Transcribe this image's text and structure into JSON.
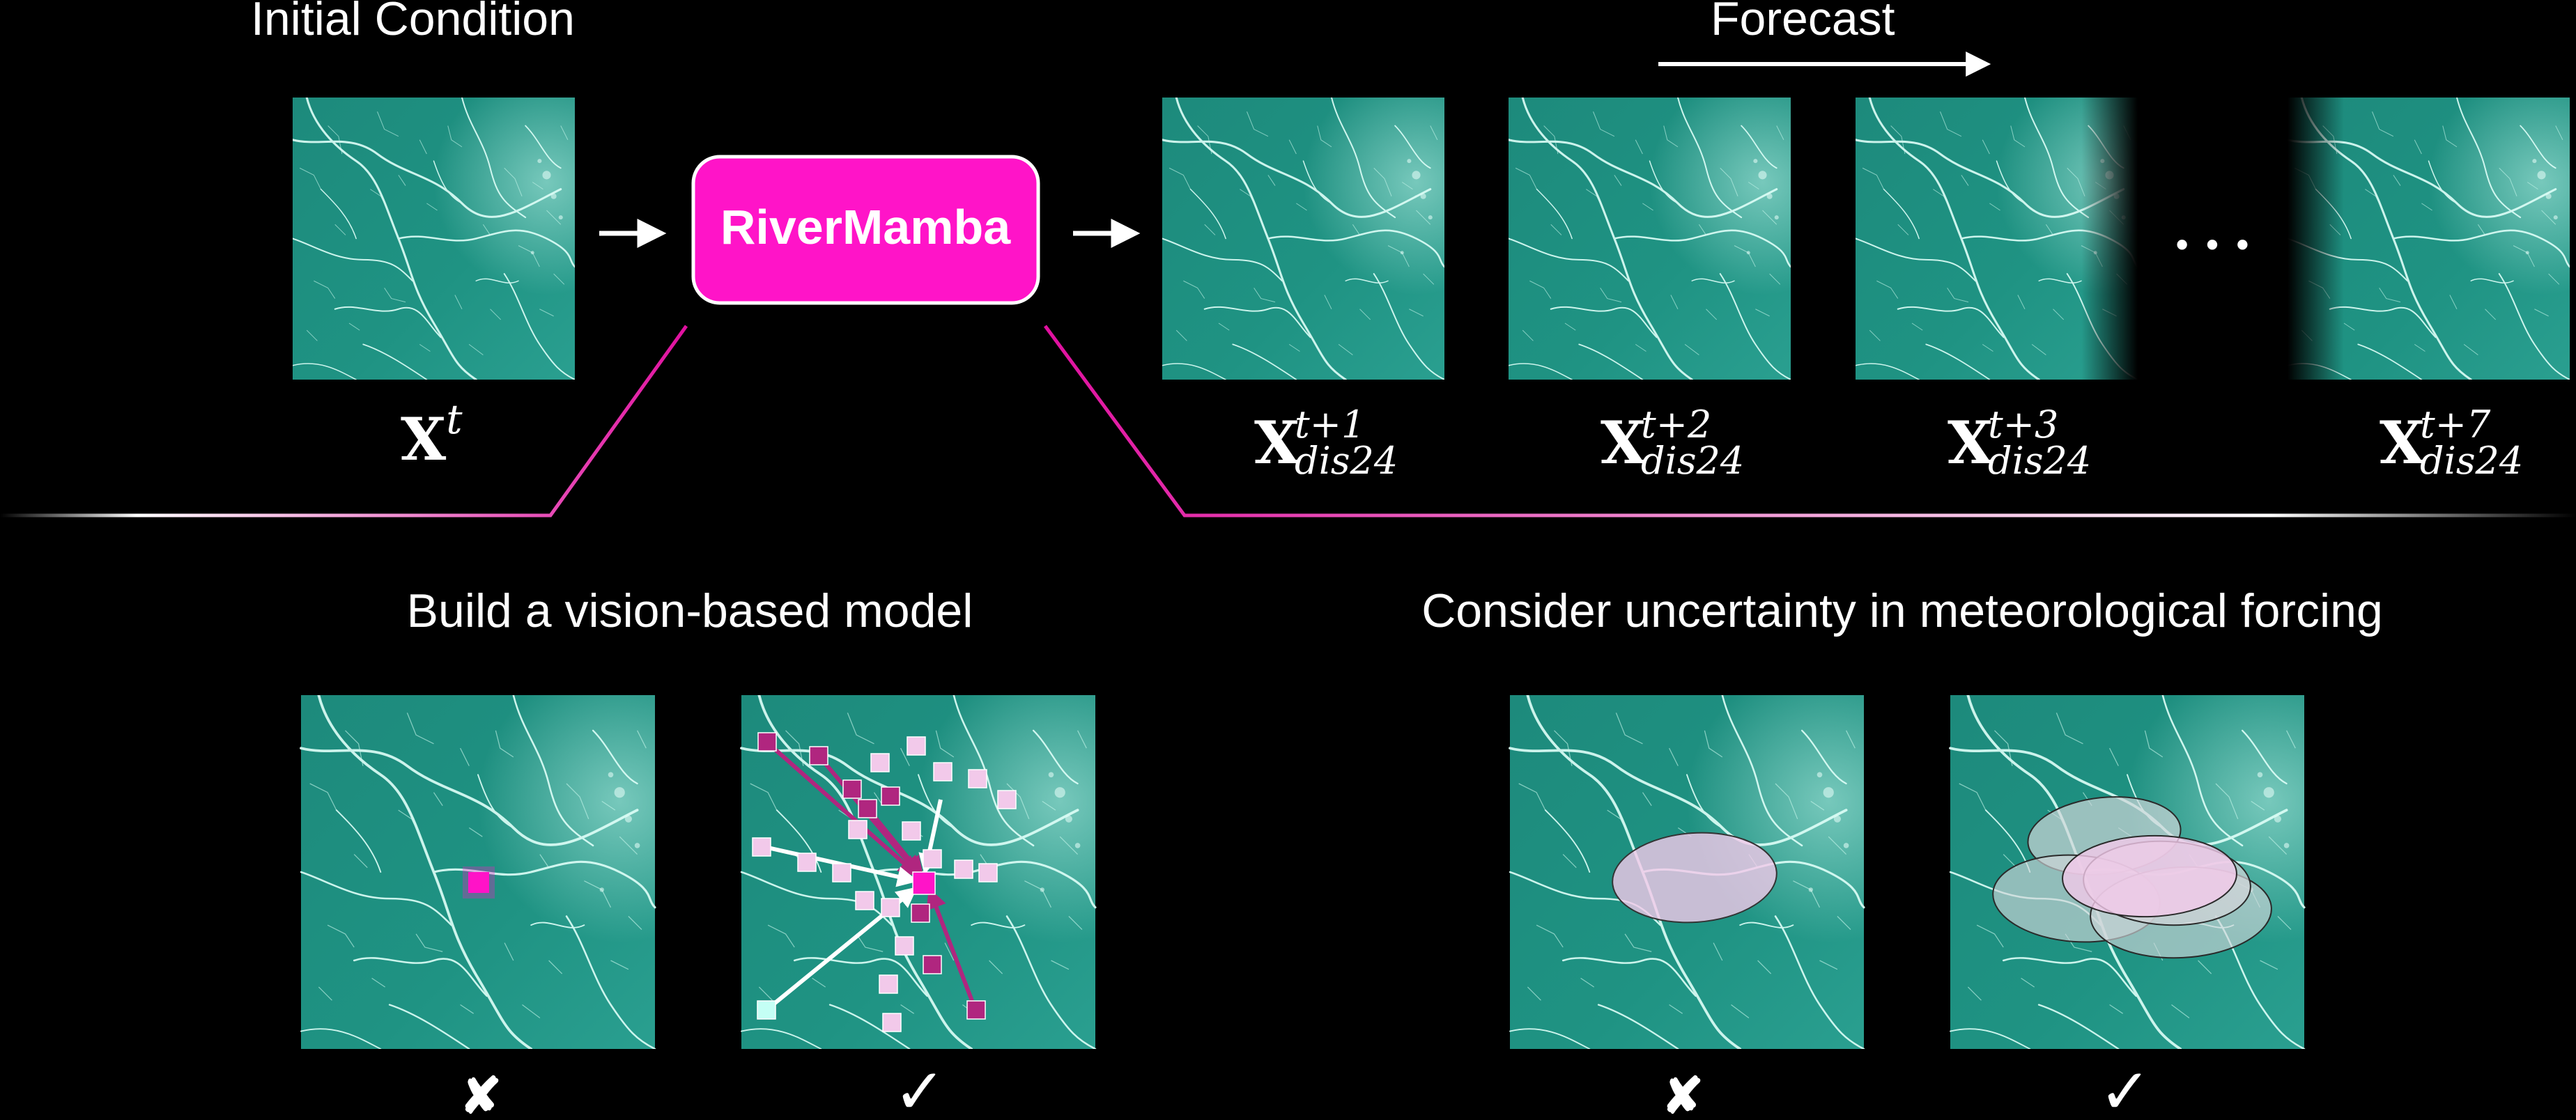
{
  "header": {
    "initial_condition": "Initial Condition",
    "forecast": "Forecast"
  },
  "model": {
    "name": "RiverMamba"
  },
  "inputs": {
    "x_base": "X",
    "x_sup": "t"
  },
  "forecasts": [
    {
      "base": "X",
      "sup": "t+1",
      "sub": "dis24"
    },
    {
      "base": "X",
      "sup": "t+2",
      "sub": "dis24"
    },
    {
      "base": "X",
      "sup": "t+3",
      "sub": "dis24"
    },
    {
      "base": "X",
      "sup": "t+7",
      "sub": "dis24"
    }
  ],
  "ellipsis": "• • •",
  "sections": {
    "left_title": "Build a vision-based model",
    "right_title": "Consider uncertainty in meteorological forcing"
  },
  "marks": {
    "cross": "✘",
    "check": "✓"
  },
  "colors": {
    "map": "#1f8f80",
    "river": "#d9fff7",
    "accent": "#ff14c8",
    "pink_light": "#f2c9ea",
    "pink_dark": "#b0267f"
  }
}
